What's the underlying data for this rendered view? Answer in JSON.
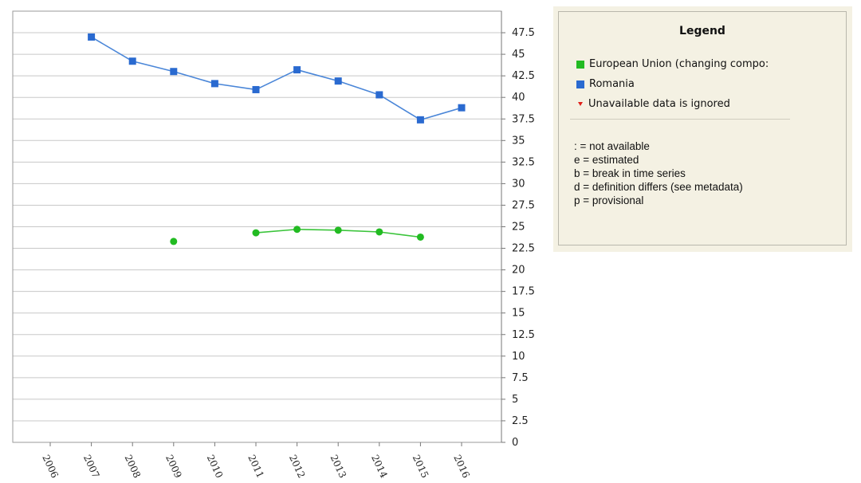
{
  "chart_data": {
    "type": "line",
    "x": [
      "2006",
      "2007",
      "2008",
      "2009",
      "2010",
      "2011",
      "2012",
      "2013",
      "2014",
      "2015",
      "2016"
    ],
    "ylim": [
      0,
      50
    ],
    "yticks": [
      "0",
      "2.5",
      "5",
      "7.5",
      "10",
      "12.5",
      "15",
      "17.5",
      "20",
      "22.5",
      "25",
      "27.5",
      "30",
      "32.5",
      "35",
      "37.5",
      "40",
      "42.5",
      "45",
      "47.5"
    ],
    "grid": true,
    "series": [
      {
        "name": "European Union (changing compo:",
        "color": "#22bb22",
        "marker": "circle",
        "values": [
          null,
          null,
          null,
          23.3,
          null,
          24.3,
          24.7,
          24.6,
          24.4,
          23.8,
          null
        ]
      },
      {
        "name": "Romania",
        "color": "#2a6ad0",
        "marker": "square",
        "values": [
          null,
          47.0,
          44.2,
          43.0,
          41.6,
          40.9,
          43.2,
          41.9,
          40.3,
          37.4,
          38.8
        ]
      }
    ]
  },
  "legend": {
    "title": "Legend",
    "items": [
      {
        "label": "European Union (changing compo:",
        "color": "#22bb22"
      },
      {
        "label": "Romania",
        "color": "#2a6ad0"
      },
      {
        "label": "Unavailable data is ignored",
        "color": "#e0201a"
      }
    ],
    "notes": [
      ": = not available",
      "e = estimated",
      "b = break in time series",
      "d = definition differs (see metadata)",
      "p = provisional"
    ]
  }
}
